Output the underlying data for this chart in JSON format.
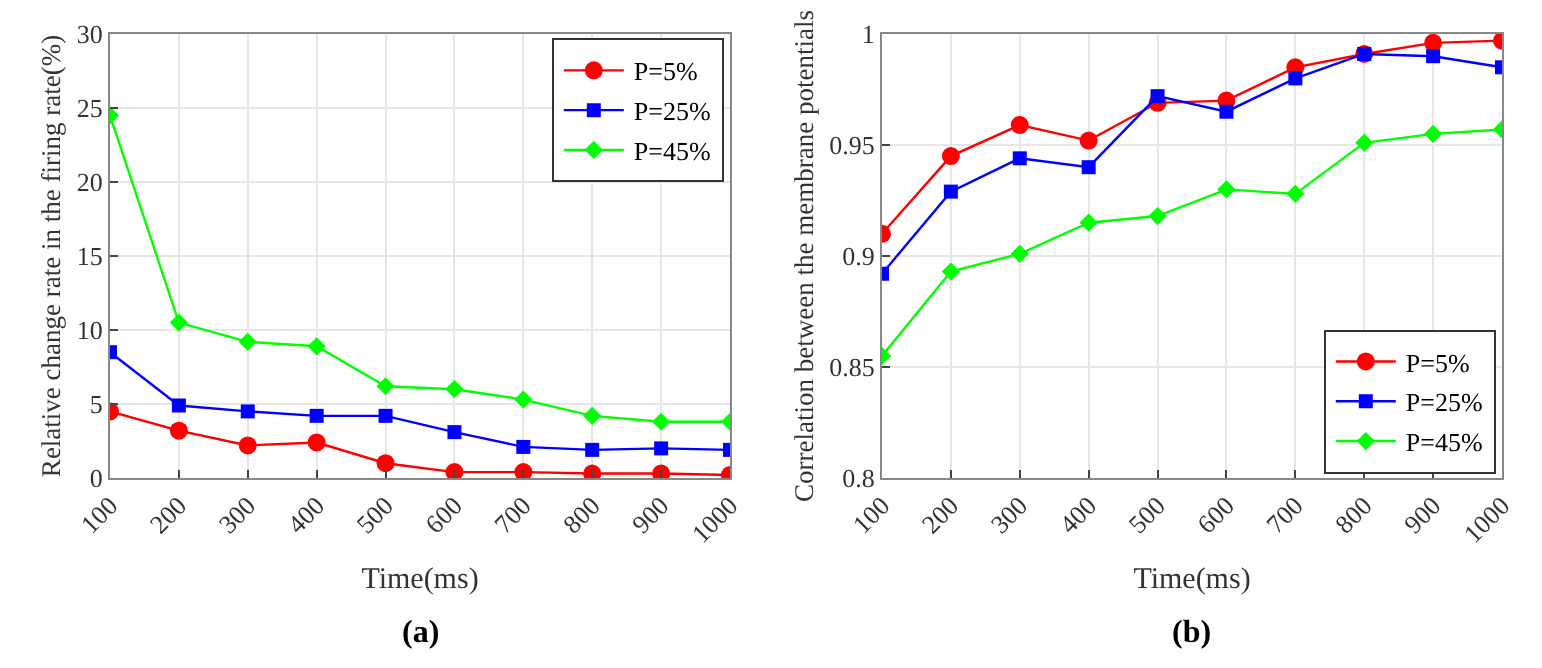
{
  "chart_data": [
    {
      "type": "line",
      "xlabel": "Time(ms)",
      "ylabel": "Relative change rate in the firing rate(%)",
      "annotations": [
        "(a)"
      ],
      "x": [
        100,
        200,
        300,
        400,
        500,
        600,
        700,
        800,
        900,
        1000
      ],
      "series": [
        {
          "name": "P=5%",
          "color": "#ff0000",
          "marker": "circle",
          "values": [
            4.5,
            3.2,
            2.2,
            2.4,
            1.0,
            0.4,
            0.4,
            0.3,
            0.3,
            0.2
          ]
        },
        {
          "name": "P=25%",
          "color": "#0000ff",
          "marker": "square",
          "values": [
            8.5,
            4.9,
            4.5,
            4.2,
            4.2,
            3.1,
            2.1,
            1.9,
            2.0,
            1.9
          ]
        },
        {
          "name": "P=45%",
          "color": "#00ff00",
          "marker": "diamond",
          "values": [
            24.5,
            10.5,
            9.2,
            8.9,
            6.2,
            6.0,
            5.3,
            4.2,
            3.8,
            3.8
          ]
        }
      ],
      "xlim": [
        100,
        1000
      ],
      "xticks": [
        100,
        200,
        300,
        400,
        500,
        600,
        700,
        800,
        900,
        1000
      ],
      "ylim": [
        0,
        30
      ],
      "yticks": [
        0,
        5,
        10,
        15,
        20,
        25,
        30
      ],
      "grid": true,
      "legend": "top right",
      "line_style": "solid"
    },
    {
      "type": "line",
      "xlabel": "Time(ms)",
      "ylabel": "Correlation between the membrane potentials",
      "annotations": [
        "(b)"
      ],
      "x": [
        100,
        200,
        300,
        400,
        500,
        600,
        700,
        800,
        900,
        1000
      ],
      "series": [
        {
          "name": "P=5%",
          "color": "#ff0000",
          "marker": "circle",
          "values": [
            0.91,
            0.945,
            0.959,
            0.952,
            0.969,
            0.97,
            0.985,
            0.991,
            0.996,
            0.997
          ]
        },
        {
          "name": "P=25%",
          "color": "#0000ff",
          "marker": "square",
          "values": [
            0.892,
            0.929,
            0.944,
            0.94,
            0.972,
            0.965,
            0.98,
            0.991,
            0.99,
            0.985
          ]
        },
        {
          "name": "P=45%",
          "color": "#00ff00",
          "marker": "diamond",
          "values": [
            0.855,
            0.893,
            0.901,
            0.915,
            0.918,
            0.93,
            0.928,
            0.951,
            0.955,
            0.957
          ]
        }
      ],
      "xlim": [
        100,
        1000
      ],
      "xticks": [
        100,
        200,
        300,
        400,
        500,
        600,
        700,
        800,
        900,
        1000
      ],
      "ylim": [
        0.8,
        1
      ],
      "yticks": [
        0.8,
        0.85,
        0.9,
        0.95,
        1
      ],
      "grid": true,
      "legend": "bottom right",
      "line_style": "solid"
    }
  ]
}
